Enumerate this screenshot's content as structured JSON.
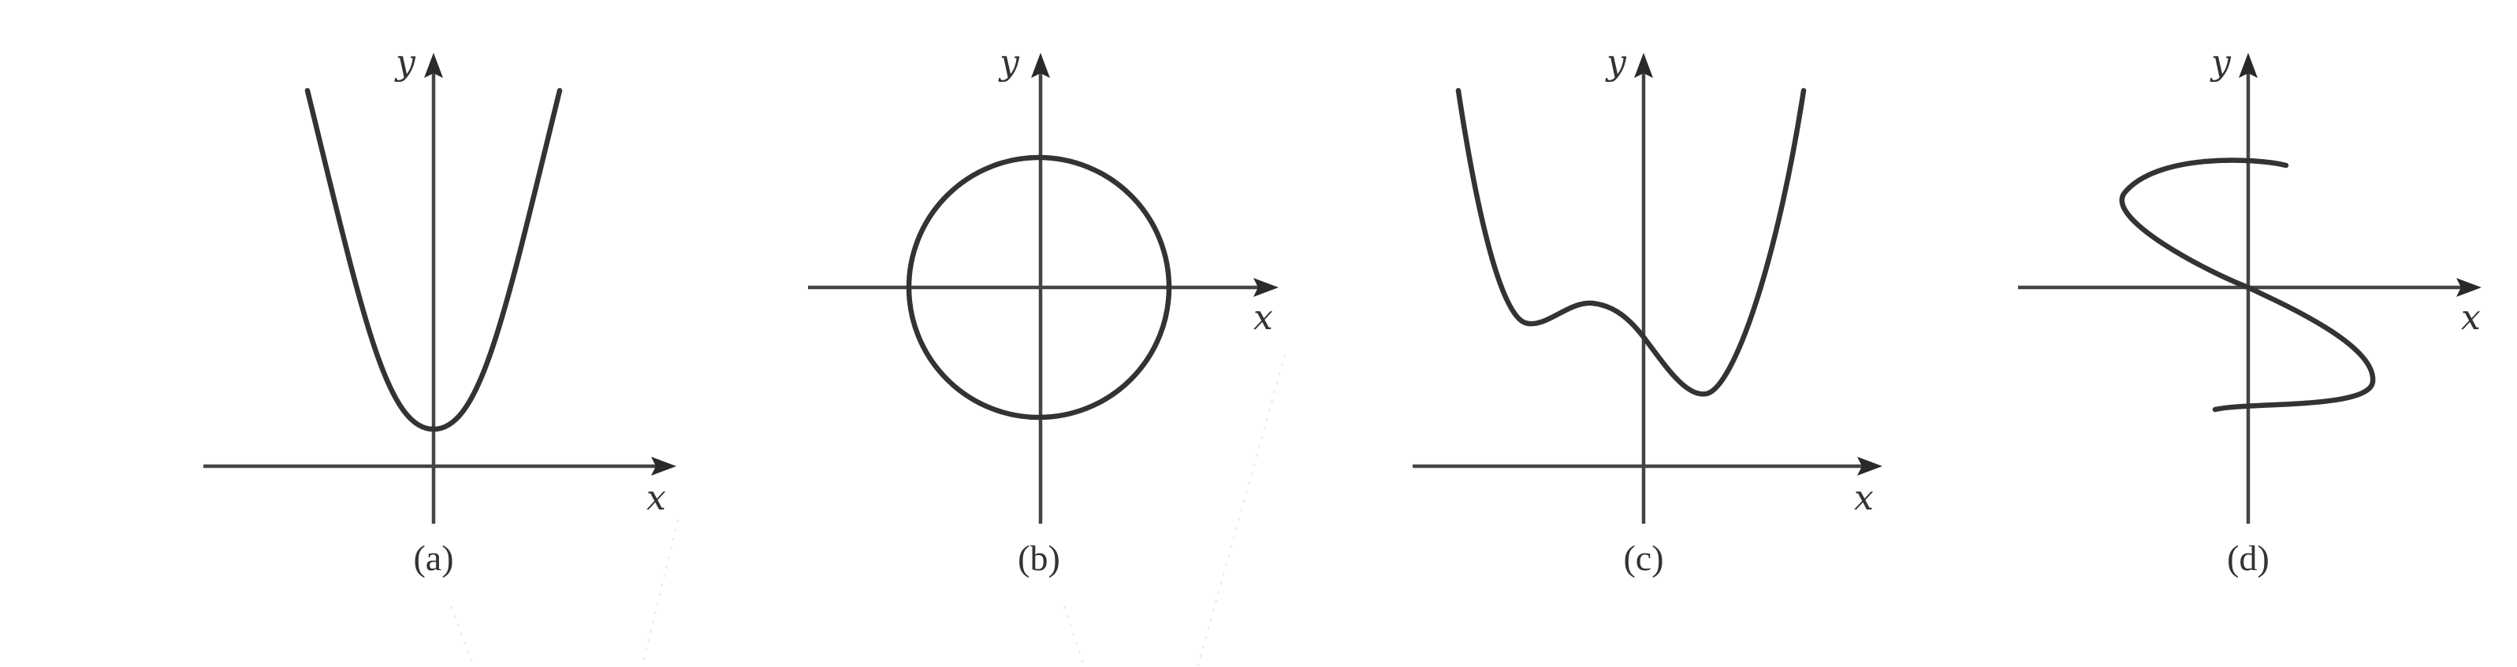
{
  "panels": [
    {
      "id": "a",
      "caption": "(a)",
      "x_label": "x",
      "y_label": "y",
      "curve": "parabola"
    },
    {
      "id": "b",
      "caption": "(b)",
      "x_label": "x",
      "y_label": "y",
      "curve": "circle"
    },
    {
      "id": "c",
      "caption": "(c)",
      "x_label": "x",
      "y_label": "y",
      "curve": "quartic-with-local-min"
    },
    {
      "id": "d",
      "caption": "(d)",
      "x_label": "x",
      "y_label": "y",
      "curve": "sideways-s-curve"
    }
  ]
}
